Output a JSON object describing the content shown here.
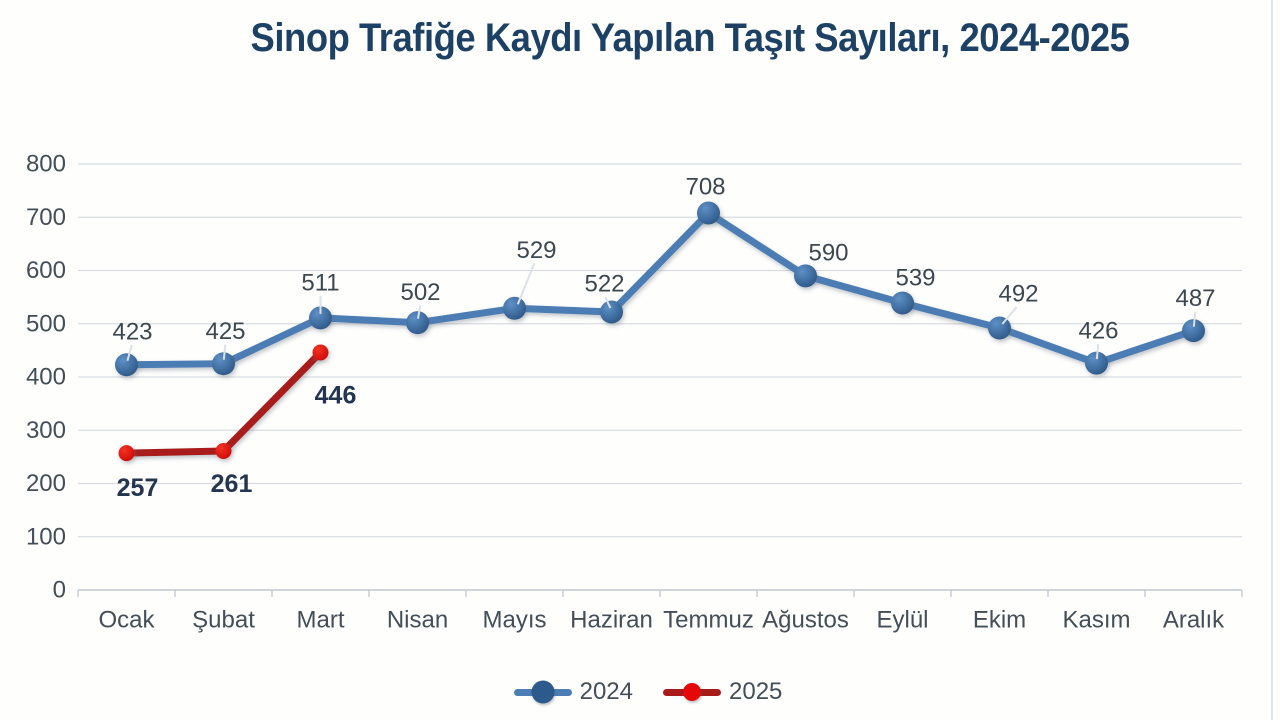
{
  "title": "Sinop Trafiğe Kaydı Yapılan Taşıt Sayıları, 2024-2025",
  "chart_data": {
    "type": "line",
    "title": "Sinop Trafiğe Kaydı Yapılan Taşıt Sayıları, 2024-2025",
    "categories": [
      "Ocak",
      "Şubat",
      "Mart",
      "Nisan",
      "Mayıs",
      "Haziran",
      "Temmuz",
      "Ağustos",
      "Eylül",
      "Ekim",
      "Kasım",
      "Aralık"
    ],
    "series": [
      {
        "name": "2024",
        "values": [
          423,
          425,
          511,
          502,
          529,
          522,
          708,
          590,
          539,
          492,
          426,
          487
        ],
        "line_color": "#4c7db4",
        "marker_color": "#2c5a8c",
        "label_color": "#3c4750",
        "label_bold": false
      },
      {
        "name": "2025",
        "values": [
          257,
          261,
          446
        ],
        "line_color": "#a81b1b",
        "marker_color": "#e60808",
        "label_color": "#24364f",
        "label_bold": true
      }
    ],
    "ylim": [
      0,
      800
    ],
    "yticks": [
      0,
      100,
      200,
      300,
      400,
      500,
      600,
      700,
      800
    ],
    "grid": true,
    "legend_position": "bottom",
    "xlabel": "",
    "ylabel": ""
  },
  "colors": {
    "title_text": "#1d4065",
    "axis_text": "#434e58",
    "gridline": "#d9dde1",
    "axis_line": "#bfc8d0",
    "leader_line": "#dbe1e7",
    "background": "#fefefd",
    "page_edge_line": "#dee5e9"
  }
}
